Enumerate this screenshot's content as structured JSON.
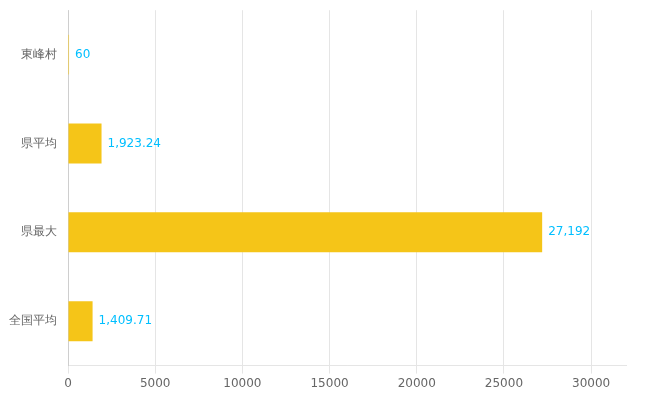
{
  "chart_data": {
    "type": "bar",
    "orientation": "horizontal",
    "categories": [
      "東峰村",
      "県平均",
      "県最大",
      "全国平均"
    ],
    "values": [
      60,
      1923.24,
      27192,
      1409.71
    ],
    "value_labels": [
      "60",
      "1,923.24",
      "27,192",
      "1,409.71"
    ],
    "data_labels": true,
    "color": "#F5C518",
    "xlim": [
      0,
      32000
    ],
    "xticks": [
      0,
      5000,
      10000,
      15000,
      20000,
      25000,
      30000
    ],
    "grid": true
  }
}
